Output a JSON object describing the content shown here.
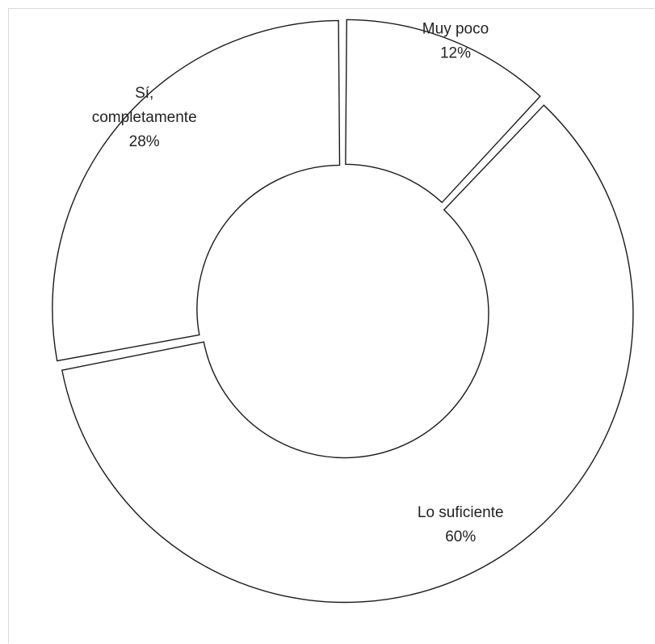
{
  "chart_data": {
    "type": "pie",
    "subtype": "doughnut",
    "categories": [
      "Muy poco",
      "Lo suficiente",
      "Sí, completamente"
    ],
    "values": [
      12,
      60,
      28
    ],
    "labels": [
      {
        "lines": [
          "Muy poco",
          "12%"
        ]
      },
      {
        "lines": [
          "Lo suficiente",
          "60%"
        ]
      },
      {
        "lines": [
          "Sí,",
          "completamente",
          "28%"
        ]
      }
    ],
    "legend": "none",
    "colors": {
      "fill": "#ffffff",
      "stroke": "#1a1a1a",
      "text": "#222222",
      "frame": "#d9d9d9"
    }
  }
}
